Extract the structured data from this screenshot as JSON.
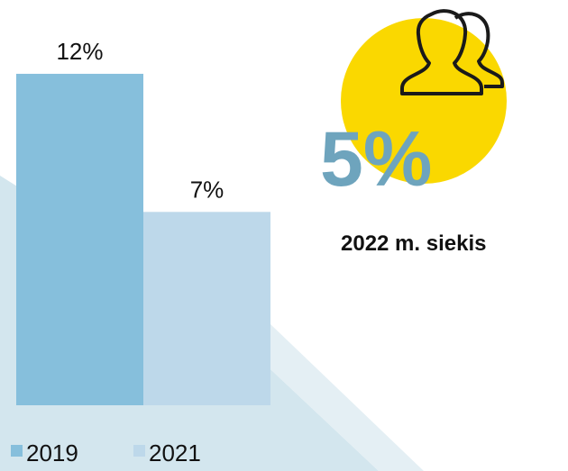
{
  "chart_data": {
    "type": "bar",
    "series": [
      {
        "name": "2019",
        "color": "#86bfdc",
        "values": [
          12
        ],
        "value_labels": [
          "12%"
        ]
      },
      {
        "name": "2021",
        "color": "#bdd8ea",
        "values": [
          7
        ],
        "value_labels": [
          "7%"
        ]
      }
    ],
    "annotations": [
      "5%",
      "2022 m. siekis"
    ]
  }
}
